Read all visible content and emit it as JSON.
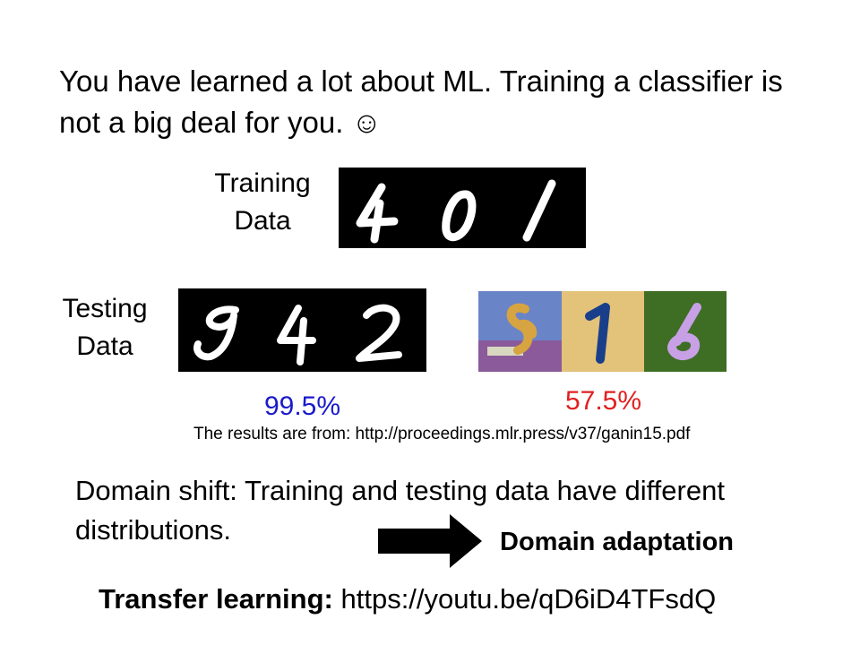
{
  "slide": {
    "intro_line1": "You have learned a lot about ML. Training a classifier is",
    "intro_line2": "not a big deal for you. ☺",
    "training_label_1": "Training",
    "training_label_2": "Data",
    "testing_label_1": "Testing",
    "testing_label_2": "Data",
    "accuracy_mnist": "99.5%",
    "accuracy_mnistm": "57.5%",
    "source_note": "The results are from: http://proceedings.mlr.press/v37/ganin15.pdf",
    "domain_shift_line1": "Domain shift: Training and testing data have different",
    "domain_shift_line2": "distributions.",
    "domain_adaptation": "Domain adaptation",
    "transfer_label": "Transfer learning:",
    "transfer_url": "https://youtu.be/qD6iD4TFsdQ"
  },
  "colors": {
    "accuracy_good": "#1a1acc",
    "accuracy_bad": "#e02020"
  },
  "images": {
    "training_digits": "mnist-digits-4-0-1",
    "testing_digits": "mnist-digits-9-4-2",
    "testing_digits_colored": "mnist-m-digits-8-1-6"
  }
}
